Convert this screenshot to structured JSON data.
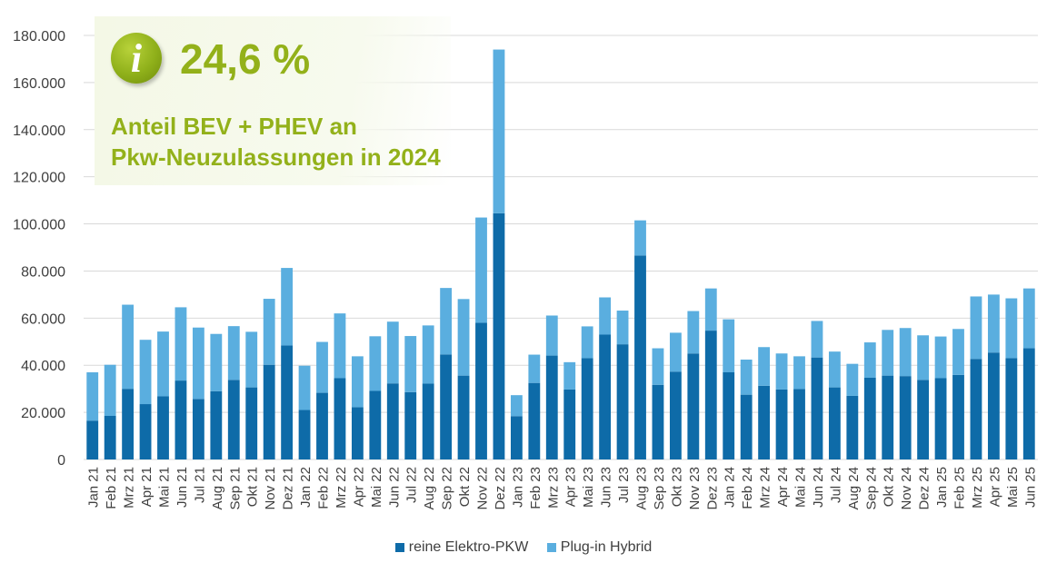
{
  "highlight": {
    "icon": "info-icon",
    "icon_glyph": "i",
    "value": "24,6 %",
    "text_line1": "Anteil BEV + PHEV an",
    "text_line2": "Pkw-Neuzulassungen in 2024"
  },
  "colors": {
    "bev": "#0e6ba8",
    "phev": "#5aaedf",
    "accent": "#93b11a",
    "grid": "#d9d9d9",
    "axis_text": "#404040"
  },
  "chart_data": {
    "type": "bar",
    "stacked": true,
    "categories": [
      "Jan 21",
      "Feb 21",
      "Mrz 21",
      "Apr 21",
      "Mai 21",
      "Jun 21",
      "Jul 21",
      "Aug 21",
      "Sep 21",
      "Okt 21",
      "Nov 21",
      "Dez 21",
      "Jan 22",
      "Feb 22",
      "Mrz 22",
      "Apr 22",
      "Mai 22",
      "Jun 22",
      "Jul 22",
      "Aug 22",
      "Sep 22",
      "Okt 22",
      "Nov 22",
      "Dez 22",
      "Jan 23",
      "Feb 23",
      "Mrz 23",
      "Apr 23",
      "Mai 23",
      "Jun 23",
      "Jul 23",
      "Aug 23",
      "Sep 23",
      "Okt 23",
      "Nov 23",
      "Dez 23",
      "Jan 24",
      "Feb 24",
      "Mrz 24",
      "Apr 24",
      "Mai 24",
      "Jun 24",
      "Jul 24",
      "Aug 24",
      "Sep 24",
      "Okt 24",
      "Nov 24",
      "Dez 24",
      "Jan 25",
      "Feb 25",
      "Mrz 25",
      "Apr 25",
      "Mai 25",
      "Jun 25"
    ],
    "series": [
      {
        "name": "reine Elektro-PKW",
        "color": "#0e6ba8",
        "values": [
          16500,
          18500,
          30000,
          23500,
          26800,
          33500,
          25700,
          29000,
          33800,
          30600,
          40200,
          48400,
          21000,
          28300,
          34500,
          22200,
          29100,
          32300,
          28600,
          32200,
          44600,
          35600,
          58000,
          104500,
          18400,
          32500,
          44100,
          29700,
          43000,
          53000,
          48900,
          86600,
          31700,
          37300,
          45000,
          54700,
          37000,
          27500,
          31300,
          29700,
          29900,
          43300,
          30600,
          27000,
          34700,
          35600,
          35400,
          33800,
          34500,
          35900,
          42700,
          45400,
          43000,
          47200
        ]
      },
      {
        "name": "Plug-in Hybrid",
        "color": "#5aaedf",
        "values": [
          20500,
          21700,
          35700,
          27300,
          27500,
          31100,
          30300,
          24300,
          22800,
          23600,
          28000,
          32900,
          18800,
          21600,
          27500,
          21600,
          23200,
          26200,
          23800,
          24700,
          28200,
          32500,
          44700,
          69500,
          8900,
          12000,
          17000,
          11600,
          13500,
          15800,
          14300,
          14900,
          15500,
          16500,
          18000,
          17900,
          22500,
          14900,
          16400,
          15300,
          13900,
          15500,
          15200,
          13600,
          15000,
          19400,
          20400,
          18900,
          17700,
          19500,
          26500,
          24600,
          25400,
          25400
        ]
      }
    ],
    "yticks": [
      "0",
      "20.000",
      "40.000",
      "60.000",
      "80.000",
      "100.000",
      "120.000",
      "140.000",
      "160.000",
      "180.000"
    ],
    "ylim": [
      0,
      180000
    ],
    "grid": true,
    "legend_position": "bottom"
  }
}
